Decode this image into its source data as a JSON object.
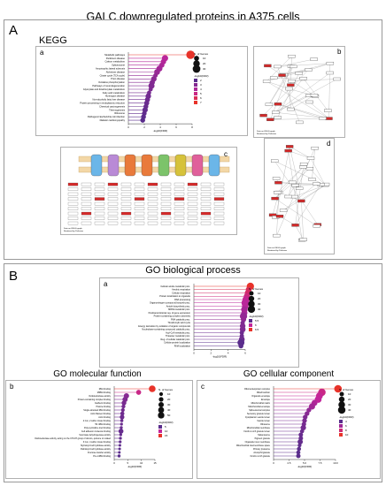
{
  "page_title": "GALC downregulated proteins in A375 cells",
  "section_a": {
    "letter": "A",
    "title": "KEGG"
  },
  "section_b": {
    "letter": "B",
    "title": "GO biological process"
  },
  "go_mf_title": "GO molecular function",
  "go_cc_title": "GO cellular component",
  "colors": {
    "high": "#e8332a",
    "mid": "#c2259b",
    "low": "#5a2d8c",
    "line": "#555555"
  },
  "panel_letters": {
    "kegg": "a",
    "pathway_b": "b",
    "pathway_c": "c",
    "pathway_d": "d",
    "bp": "a",
    "mf": "b",
    "cc": "c"
  },
  "pathway_captions": {
    "b": "Data on KEGG graph\nRendered by Pathview",
    "c": "Data on KEGG graph\nRendered by Pathview",
    "d": "Data on KEGG graph\nRendered by Pathview"
  },
  "chart_data": [
    {
      "id": "kegg",
      "type": "dot",
      "xlabel": "-log10(FDR)",
      "xlim": [
        0,
        8
      ],
      "xticks": [
        0,
        2,
        4,
        6,
        8
      ],
      "size_legend_title": "N. of Genes",
      "size_legend": [
        10,
        20,
        30
      ],
      "color_legend_title": "-log10(FDR)",
      "color_legend": [
        2,
        3,
        4,
        5,
        6,
        7
      ],
      "categories": [
        "Metabolic pathways",
        "Parkinson disease",
        "Carbon metabolism",
        "Spliceosome",
        "Amyotrophic lateral sclerosis",
        "Alzheimer disease",
        "Citrate cycle (TCA cycle)",
        "Prion disease",
        "Oxidative phosphorylation",
        "Pathways of neurodegeneration",
        "Glyoxylate and dicarboxylate metabolism",
        "Fatty acid metabolism",
        "Huntington disease",
        "Non-alcoholic fatty liver disease",
        "Protein processing in endoplasmic reticulum",
        "Chemical carcinogenesis",
        "Thermogenesis",
        "Ribosome",
        "Pathogenic Escherichia coli infection",
        "Diabetic cardiomyopathy"
      ],
      "values": [
        7.8,
        4.6,
        4.4,
        4.2,
        3.9,
        3.6,
        3.4,
        3.2,
        3.0,
        2.9,
        2.8,
        2.6,
        2.5,
        2.4,
        2.3,
        2.2,
        2.1,
        2.0,
        1.9,
        1.8
      ],
      "genes": [
        38,
        18,
        12,
        11,
        16,
        15,
        7,
        13,
        11,
        17,
        6,
        6,
        13,
        10,
        10,
        9,
        12,
        8,
        9,
        9
      ]
    },
    {
      "id": "bp",
      "type": "dot",
      "xlabel": "-log10(FDR)",
      "xlim": [
        0,
        6
      ],
      "xticks": [
        0,
        2,
        4,
        6
      ],
      "size_legend_title": "N. of Genes",
      "size_legend": [
        10,
        20,
        30,
        40
      ],
      "color_legend_title": "-log10(FDR)",
      "color_legend": [
        5.5,
        6.0,
        6.5
      ],
      "categories": [
        "Cellular amide metabolic proc.",
        "Aerobic respiration",
        "Cellular respiration",
        "Protein localization to organelle",
        "RNA processing",
        "Organonitrogen compound biosynth proc.",
        "Amide biosynthetic proc.",
        "MRNA metabolic proc.",
        "Posttranscriptional reg. of gene expression",
        "Protein-containing complex assembly",
        "RNA catabolic proc.",
        "Tricarboxylic acid cycle",
        "Energy derivation by oxidation of organic compounds",
        "Nucleobase-containing compound catabolic proc.",
        "Acyl-CoA metabolic proc.",
        "Thioester metabolic proc.",
        "Reg. of cellular catabolic proc.",
        "Cellular protein localization",
        "RNA localization"
      ],
      "values": [
        6.6,
        6.4,
        6.3,
        6.2,
        6.1,
        6.0,
        6.0,
        5.9,
        5.9,
        5.8,
        5.8,
        5.7,
        5.7,
        5.7,
        5.6,
        5.6,
        5.6,
        5.5,
        5.5
      ],
      "genes": [
        40,
        22,
        25,
        28,
        38,
        44,
        30,
        30,
        25,
        40,
        18,
        10,
        20,
        22,
        10,
        10,
        22,
        35,
        14
      ]
    },
    {
      "id": "mf",
      "type": "dot",
      "xlabel": "-log10(FDR)",
      "xlim": [
        0,
        15
      ],
      "xticks": [
        0,
        5,
        10,
        15
      ],
      "xtick_labels": [
        "0",
        "5",
        "10",
        "15"
      ],
      "size_legend_title": "N. of Genes",
      "size_legend": [
        10,
        20,
        30,
        40,
        50
      ],
      "color_legend_title": "-log10(FDR)",
      "color_legend": [
        5,
        10,
        15
      ],
      "categories": [
        "RNA binding",
        "MRNA binding",
        "Oxidoreductase activity",
        "Protein-containing complex binding",
        "Cadherin binding",
        "Histone binding",
        "Single-stranded RNA binding",
        "Actin filament binding",
        "Actin binding",
        "2 iron, 2 sulfur cluster binding",
        "5S rRNA binding",
        "Poly-pyrimidine tract binding",
        "Cell adhesion molecule binding",
        "Succinate dehydrogenase activity",
        "Oxidoreductase activity, acting on the CH-CH group of donors, quinone or related",
        "3 iron, 4 sulfur cluster binding",
        "Myristoyl-CoA hydrolase activity",
        "Palmitoyl-CoA hydrolase activity",
        "Fructose transfer activity",
        "Pre-mRNA binding"
      ],
      "values": [
        14.0,
        9.0,
        4.5,
        4.0,
        3.6,
        3.4,
        3.2,
        3.0,
        2.9,
        2.8,
        2.7,
        2.6,
        2.5,
        2.4,
        2.3,
        2.2,
        2.1,
        2.0,
        1.9,
        1.8
      ],
      "genes": [
        55,
        25,
        30,
        28,
        22,
        12,
        10,
        14,
        20,
        6,
        4,
        5,
        24,
        4,
        4,
        4,
        3,
        3,
        3,
        5
      ]
    },
    {
      "id": "cc",
      "type": "dot",
      "xlabel": "-log10(FDR)",
      "xlim": [
        0,
        10
      ],
      "xticks": [
        0,
        2.5,
        5.0,
        7.5,
        10.0
      ],
      "xtick_labels": [
        "0",
        "2.5",
        "5.0",
        "7.5",
        "10.0"
      ],
      "size_legend_title": "N. of Genes",
      "size_legend": [
        10,
        20,
        30,
        40
      ],
      "color_legend_title": "-log10(FDR)",
      "color_legend": [
        4,
        6,
        8,
        10
      ],
      "categories": [
        "Ribonucleoprotein complex",
        "Mitochondrion",
        "Organelle envelope",
        "Envelope",
        "Mitochondrial matrix",
        "Mitochondrial envelope",
        "Spliceosomal complex",
        "Secretory granule lumen",
        "Cytoplasmic vesicle lumen",
        "Vesicle lumen",
        "Ribosome",
        "Mitochondrial membrane",
        "Ficolin-1-rich granule lumen",
        "Melanosome",
        "Pigment granule",
        "Organelle inner membrane",
        "Mitochondrial intermembrane space",
        "Primary lysosome",
        "Azurophil granule",
        "Ficolin-1-rich granule"
      ],
      "values": [
        10.4,
        7.8,
        7.4,
        7.2,
        6.6,
        6.2,
        5.7,
        5.4,
        5.1,
        5.0,
        4.9,
        4.8,
        4.6,
        4.4,
        4.4,
        4.3,
        4.2,
        4.1,
        4.0,
        4.0
      ],
      "genes": [
        42,
        40,
        32,
        32,
        22,
        26,
        12,
        12,
        12,
        12,
        10,
        18,
        8,
        10,
        10,
        16,
        6,
        8,
        8,
        10
      ]
    }
  ]
}
